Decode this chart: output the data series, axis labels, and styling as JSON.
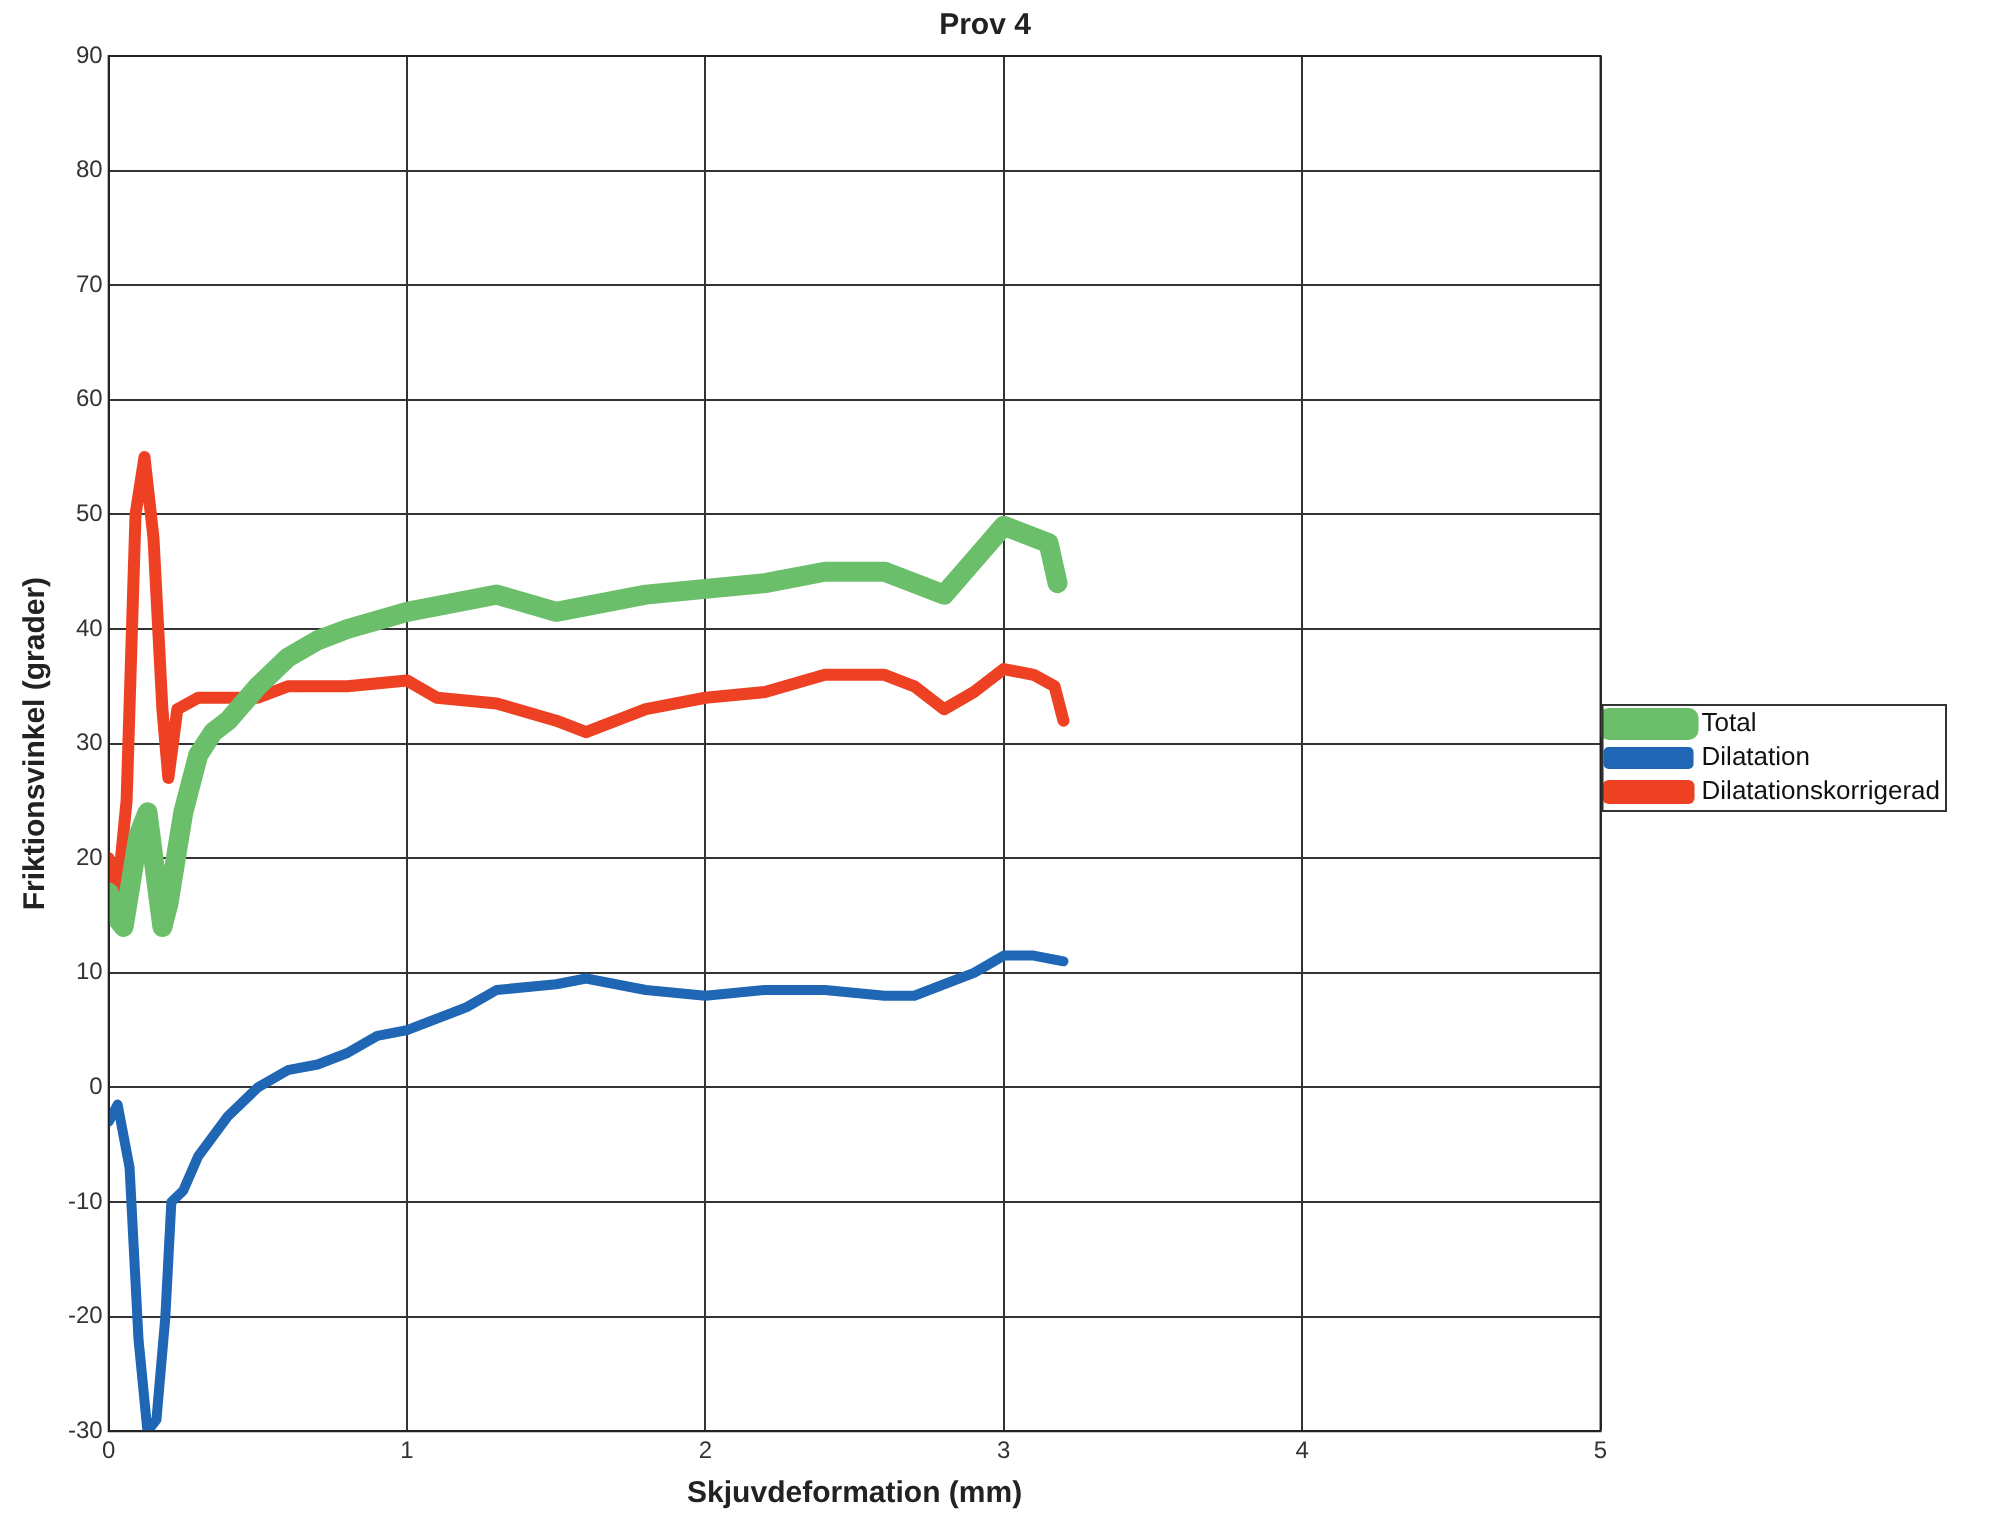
{
  "chart_data": {
    "type": "line",
    "title": "Prov 4",
    "xlabel": "Skjuvdeformation (mm)",
    "ylabel": "Friktionsvinkel (grader)",
    "xlim": [
      0,
      5
    ],
    "xticks": [
      0,
      1,
      2,
      3,
      4,
      5
    ],
    "ylim": [
      -30,
      90
    ],
    "yticks": [
      -30,
      -20,
      -10,
      0,
      10,
      20,
      30,
      40,
      50,
      60,
      70,
      80,
      90
    ],
    "grid": true,
    "legend": "right",
    "marker": "none",
    "line_style": "solid",
    "series": [
      {
        "name": "Total",
        "color": "#6cbf6a",
        "x": [
          0,
          0.02,
          0.05,
          0.1,
          0.13,
          0.18,
          0.2,
          0.25,
          0.3,
          0.35,
          0.4,
          0.5,
          0.6,
          0.7,
          0.8,
          1.0,
          1.2,
          1.3,
          1.5,
          1.6,
          1.8,
          2.0,
          2.2,
          2.4,
          2.6,
          2.7,
          2.8,
          2.9,
          3.0,
          3.1,
          3.15,
          3.18
        ],
        "values": [
          17,
          15,
          14,
          22,
          24,
          14,
          16,
          24,
          29,
          31,
          32,
          35,
          37.5,
          39,
          40,
          41.5,
          42.5,
          43,
          41.5,
          42,
          43,
          43.5,
          44,
          45,
          45,
          44,
          43,
          46,
          49,
          48,
          47.5,
          44
        ]
      },
      {
        "name": "Dilatation",
        "color": "#1f66b5",
        "x": [
          0,
          0.03,
          0.07,
          0.1,
          0.13,
          0.16,
          0.19,
          0.21,
          0.25,
          0.3,
          0.4,
          0.5,
          0.6,
          0.7,
          0.8,
          0.9,
          1.0,
          1.1,
          1.2,
          1.3,
          1.5,
          1.6,
          1.8,
          2.0,
          2.2,
          2.4,
          2.6,
          2.7,
          2.8,
          2.9,
          3.0,
          3.1,
          3.2
        ],
        "values": [
          -3,
          -1.5,
          -7,
          -22,
          -30,
          -29,
          -20,
          -10,
          -9,
          -6,
          -2.5,
          0,
          1.5,
          2,
          3,
          4.5,
          5,
          6,
          7,
          8.5,
          9,
          9.5,
          8.5,
          8,
          8.5,
          8.5,
          8,
          8,
          9,
          10,
          11.5,
          11.5,
          11
        ]
      },
      {
        "name": "Dilatationskorrigerad",
        "color": "#ee4023",
        "x": [
          0,
          0.03,
          0.06,
          0.09,
          0.12,
          0.15,
          0.18,
          0.2,
          0.23,
          0.3,
          0.4,
          0.5,
          0.6,
          0.8,
          1.0,
          1.1,
          1.3,
          1.5,
          1.6,
          1.8,
          2.0,
          2.2,
          2.4,
          2.6,
          2.7,
          2.8,
          2.9,
          3.0,
          3.1,
          3.17,
          3.2
        ],
        "values": [
          20,
          17,
          25,
          50,
          55,
          48,
          33,
          27,
          33,
          34,
          34,
          34,
          35,
          35,
          35.5,
          34,
          33.5,
          32,
          31,
          33,
          34,
          34.5,
          36,
          36,
          35,
          33,
          34.5,
          36.5,
          36,
          35,
          32
        ]
      }
    ]
  }
}
